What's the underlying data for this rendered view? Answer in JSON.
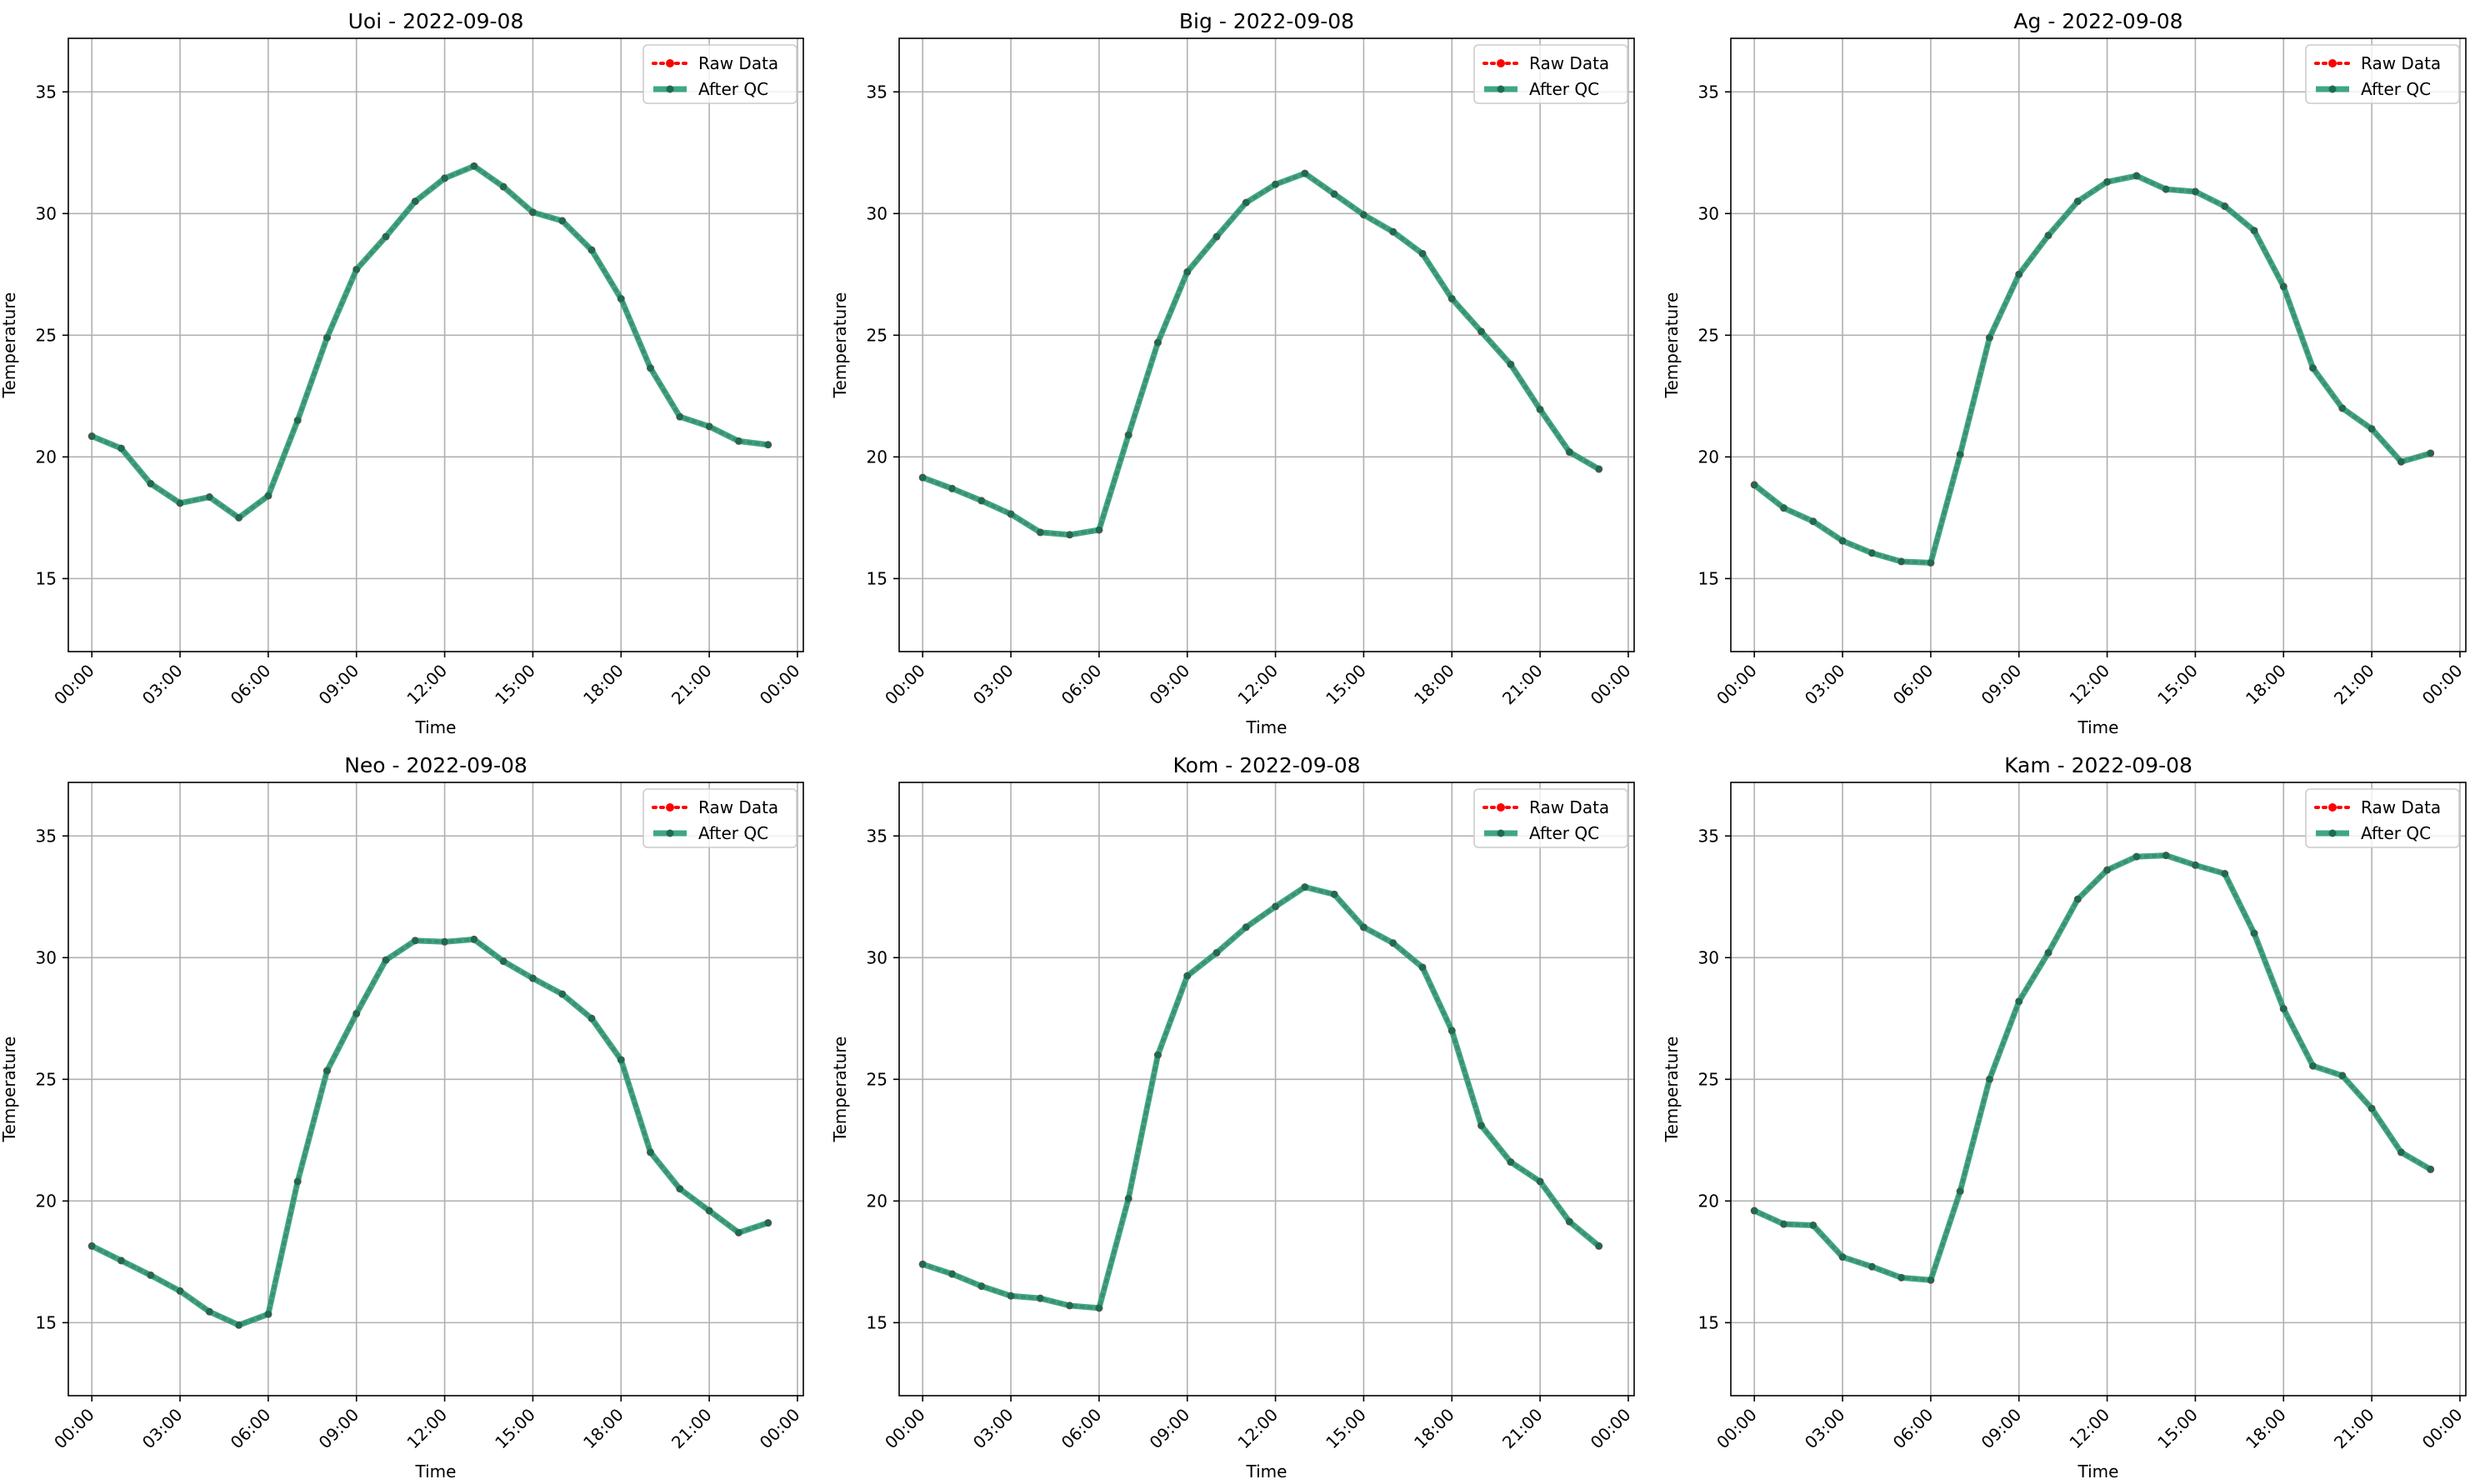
{
  "colors": {
    "raw": "#ff0000",
    "qc": "#2a9d78",
    "qc_dot": "#1d6b52",
    "grid": "#b0b0b0"
  },
  "chart_data": [
    {
      "type": "line",
      "title": "Uoi - 2022-09-08",
      "xlabel": "Time",
      "ylabel": "Temperature",
      "x": [
        "00:00",
        "01:00",
        "02:00",
        "03:00",
        "04:00",
        "05:00",
        "06:00",
        "07:00",
        "08:00",
        "09:00",
        "10:00",
        "11:00",
        "12:00",
        "13:00",
        "14:00",
        "15:00",
        "16:00",
        "17:00",
        "18:00",
        "19:00",
        "20:00",
        "21:00",
        "22:00",
        "23:00"
      ],
      "xticks": [
        "00:00",
        "03:00",
        "06:00",
        "09:00",
        "12:00",
        "15:00",
        "18:00",
        "21:00",
        "00:00"
      ],
      "yticks": [
        15,
        20,
        25,
        30,
        35
      ],
      "ylim": [
        12,
        37.2
      ],
      "xlim_hours": [
        -0.8,
        24.2
      ],
      "grid": true,
      "legend": "top-right",
      "series": [
        {
          "name": "Raw Data",
          "style": "dotted",
          "values": [
            20.85,
            20.35,
            18.9,
            18.1,
            18.35,
            17.5,
            18.4,
            21.5,
            24.9,
            27.7,
            29.05,
            30.5,
            31.45,
            31.95,
            31.1,
            30.05,
            29.7,
            28.5,
            26.5,
            23.65,
            21.65,
            21.25,
            20.65,
            20.5
          ]
        },
        {
          "name": "After QC",
          "style": "solid",
          "values": [
            20.85,
            20.35,
            18.9,
            18.1,
            18.35,
            17.5,
            18.4,
            21.5,
            24.9,
            27.7,
            29.05,
            30.5,
            31.45,
            31.95,
            31.1,
            30.05,
            29.7,
            28.5,
            26.5,
            23.65,
            21.65,
            21.25,
            20.65,
            20.5
          ]
        }
      ]
    },
    {
      "type": "line",
      "title": "Big - 2022-09-08",
      "xlabel": "Time",
      "ylabel": "Temperature",
      "x": [
        "00:00",
        "01:00",
        "02:00",
        "03:00",
        "04:00",
        "05:00",
        "06:00",
        "07:00",
        "08:00",
        "09:00",
        "10:00",
        "11:00",
        "12:00",
        "13:00",
        "14:00",
        "15:00",
        "16:00",
        "17:00",
        "18:00",
        "19:00",
        "20:00",
        "21:00",
        "22:00",
        "23:00"
      ],
      "xticks": [
        "00:00",
        "03:00",
        "06:00",
        "09:00",
        "12:00",
        "15:00",
        "18:00",
        "21:00",
        "00:00"
      ],
      "yticks": [
        15,
        20,
        25,
        30,
        35
      ],
      "ylim": [
        12,
        37.2
      ],
      "xlim_hours": [
        -0.8,
        24.2
      ],
      "grid": true,
      "legend": "top-right",
      "series": [
        {
          "name": "Raw Data",
          "style": "dotted",
          "values": [
            19.15,
            18.7,
            18.2,
            17.65,
            16.9,
            16.8,
            17.0,
            20.9,
            24.7,
            27.6,
            29.05,
            30.45,
            31.2,
            31.65,
            30.8,
            29.95,
            29.25,
            28.35,
            26.5,
            25.15,
            23.8,
            21.95,
            20.2,
            19.5
          ]
        },
        {
          "name": "After QC",
          "style": "solid",
          "values": [
            19.15,
            18.7,
            18.2,
            17.65,
            16.9,
            16.8,
            17.0,
            20.9,
            24.7,
            27.6,
            29.05,
            30.45,
            31.2,
            31.65,
            30.8,
            29.95,
            29.25,
            28.35,
            26.5,
            25.15,
            23.8,
            21.95,
            20.2,
            19.5
          ]
        }
      ]
    },
    {
      "type": "line",
      "title": "Ag - 2022-09-08",
      "xlabel": "Time",
      "ylabel": "Temperature",
      "x": [
        "00:00",
        "01:00",
        "02:00",
        "03:00",
        "04:00",
        "05:00",
        "06:00",
        "07:00",
        "08:00",
        "09:00",
        "10:00",
        "11:00",
        "12:00",
        "13:00",
        "14:00",
        "15:00",
        "16:00",
        "17:00",
        "18:00",
        "19:00",
        "20:00",
        "21:00",
        "22:00",
        "23:00"
      ],
      "xticks": [
        "00:00",
        "03:00",
        "06:00",
        "09:00",
        "12:00",
        "15:00",
        "18:00",
        "21:00",
        "00:00"
      ],
      "yticks": [
        15,
        20,
        25,
        30,
        35
      ],
      "ylim": [
        12,
        37.2
      ],
      "xlim_hours": [
        -0.8,
        24.2
      ],
      "grid": true,
      "legend": "top-right",
      "series": [
        {
          "name": "Raw Data",
          "style": "dotted",
          "values": [
            18.85,
            17.9,
            17.35,
            16.55,
            16.05,
            15.7,
            15.65,
            20.1,
            24.9,
            27.5,
            29.1,
            30.5,
            31.3,
            31.55,
            31.0,
            30.9,
            30.3,
            29.3,
            27.0,
            23.65,
            22.0,
            21.15,
            19.8,
            20.15
          ]
        },
        {
          "name": "After QC",
          "style": "solid",
          "values": [
            18.85,
            17.9,
            17.35,
            16.55,
            16.05,
            15.7,
            15.65,
            20.1,
            24.9,
            27.5,
            29.1,
            30.5,
            31.3,
            31.55,
            31.0,
            30.9,
            30.3,
            29.3,
            27.0,
            23.65,
            22.0,
            21.15,
            19.8,
            20.15
          ]
        }
      ]
    },
    {
      "type": "line",
      "title": "Neo - 2022-09-08",
      "xlabel": "Time",
      "ylabel": "Temperature",
      "x": [
        "00:00",
        "01:00",
        "02:00",
        "03:00",
        "04:00",
        "05:00",
        "06:00",
        "07:00",
        "08:00",
        "09:00",
        "10:00",
        "11:00",
        "12:00",
        "13:00",
        "14:00",
        "15:00",
        "16:00",
        "17:00",
        "18:00",
        "19:00",
        "20:00",
        "21:00",
        "22:00",
        "23:00"
      ],
      "xticks": [
        "00:00",
        "03:00",
        "06:00",
        "09:00",
        "12:00",
        "15:00",
        "18:00",
        "21:00",
        "00:00"
      ],
      "yticks": [
        15,
        20,
        25,
        30,
        35
      ],
      "ylim": [
        12,
        37.2
      ],
      "xlim_hours": [
        -0.8,
        24.2
      ],
      "grid": true,
      "legend": "top-right",
      "series": [
        {
          "name": "Raw Data",
          "style": "dotted",
          "values": [
            18.15,
            17.55,
            16.95,
            16.3,
            15.45,
            14.9,
            15.35,
            20.8,
            25.35,
            27.7,
            29.9,
            30.7,
            30.65,
            30.75,
            29.85,
            29.15,
            28.5,
            27.5,
            25.8,
            22.0,
            20.5,
            19.6,
            18.7,
            19.1
          ]
        },
        {
          "name": "After QC",
          "style": "solid",
          "values": [
            18.15,
            17.55,
            16.95,
            16.3,
            15.45,
            14.9,
            15.35,
            20.8,
            25.35,
            27.7,
            29.9,
            30.7,
            30.65,
            30.75,
            29.85,
            29.15,
            28.5,
            27.5,
            25.8,
            22.0,
            20.5,
            19.6,
            18.7,
            19.1
          ]
        }
      ]
    },
    {
      "type": "line",
      "title": "Kom - 2022-09-08",
      "xlabel": "Time",
      "ylabel": "Temperature",
      "x": [
        "00:00",
        "01:00",
        "02:00",
        "03:00",
        "04:00",
        "05:00",
        "06:00",
        "07:00",
        "08:00",
        "09:00",
        "10:00",
        "11:00",
        "12:00",
        "13:00",
        "14:00",
        "15:00",
        "16:00",
        "17:00",
        "18:00",
        "19:00",
        "20:00",
        "21:00",
        "22:00",
        "23:00"
      ],
      "xticks": [
        "00:00",
        "03:00",
        "06:00",
        "09:00",
        "12:00",
        "15:00",
        "18:00",
        "21:00",
        "00:00"
      ],
      "yticks": [
        15,
        20,
        25,
        30,
        35
      ],
      "ylim": [
        12,
        37.2
      ],
      "xlim_hours": [
        -0.8,
        24.2
      ],
      "grid": true,
      "legend": "top-right",
      "series": [
        {
          "name": "Raw Data",
          "style": "dotted",
          "values": [
            17.4,
            17.0,
            16.5,
            16.1,
            16.0,
            15.7,
            15.6,
            20.1,
            26.0,
            29.25,
            30.2,
            31.25,
            32.1,
            32.9,
            32.6,
            31.25,
            30.6,
            29.6,
            27.0,
            23.1,
            21.6,
            20.8,
            19.15,
            18.15
          ]
        },
        {
          "name": "After QC",
          "style": "solid",
          "values": [
            17.4,
            17.0,
            16.5,
            16.1,
            16.0,
            15.7,
            15.6,
            20.1,
            26.0,
            29.25,
            30.2,
            31.25,
            32.1,
            32.9,
            32.6,
            31.25,
            30.6,
            29.6,
            27.0,
            23.1,
            21.6,
            20.8,
            19.15,
            18.15
          ]
        }
      ]
    },
    {
      "type": "line",
      "title": "Kam - 2022-09-08",
      "xlabel": "Time",
      "ylabel": "Temperature",
      "x": [
        "00:00",
        "01:00",
        "02:00",
        "03:00",
        "04:00",
        "05:00",
        "06:00",
        "07:00",
        "08:00",
        "09:00",
        "10:00",
        "11:00",
        "12:00",
        "13:00",
        "14:00",
        "15:00",
        "16:00",
        "17:00",
        "18:00",
        "19:00",
        "20:00",
        "21:00",
        "22:00",
        "23:00"
      ],
      "xticks": [
        "00:00",
        "03:00",
        "06:00",
        "09:00",
        "12:00",
        "15:00",
        "18:00",
        "21:00",
        "00:00"
      ],
      "yticks": [
        15,
        20,
        25,
        30,
        35
      ],
      "ylim": [
        12,
        37.2
      ],
      "xlim_hours": [
        -0.8,
        24.2
      ],
      "grid": true,
      "legend": "top-right",
      "series": [
        {
          "name": "Raw Data",
          "style": "dotted",
          "values": [
            19.6,
            19.05,
            19.0,
            17.7,
            17.3,
            16.85,
            16.75,
            20.4,
            25.0,
            28.2,
            30.2,
            32.4,
            33.6,
            34.15,
            34.2,
            33.8,
            33.45,
            31.0,
            27.9,
            25.55,
            25.15,
            23.8,
            22.0,
            21.3
          ]
        },
        {
          "name": "After QC",
          "style": "solid",
          "values": [
            19.6,
            19.05,
            19.0,
            17.7,
            17.3,
            16.85,
            16.75,
            20.4,
            25.0,
            28.2,
            30.2,
            32.4,
            33.6,
            34.15,
            34.2,
            33.8,
            33.45,
            31.0,
            27.9,
            25.55,
            25.15,
            23.8,
            22.0,
            21.3
          ]
        }
      ]
    }
  ]
}
